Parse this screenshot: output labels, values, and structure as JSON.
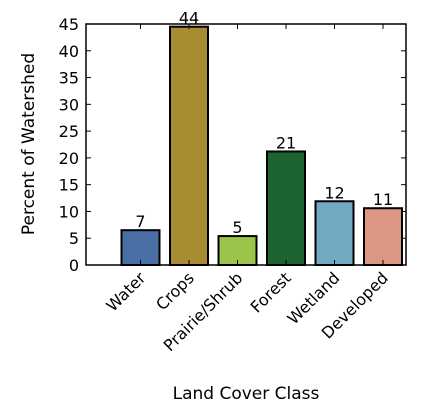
{
  "chart_data": {
    "type": "bar",
    "title": "",
    "xlabel": "Land Cover Class",
    "ylabel": "Percent of Watershed",
    "categories": [
      "Water",
      "Crops",
      "Prairie/Shrub",
      "Forest",
      "Wetland",
      "Developed"
    ],
    "values": [
      6.5,
      44.5,
      5.4,
      21.2,
      11.9,
      10.6
    ],
    "data_labels": [
      "7",
      "44",
      "5",
      "21",
      "12",
      "11"
    ],
    "colors": [
      "#4a6fa5",
      "#a88c32",
      "#9dc44a",
      "#1e6332",
      "#72a8c0",
      "#dd9684"
    ],
    "ylim": [
      0,
      45
    ],
    "yticks": [
      0,
      5,
      10,
      15,
      20,
      25,
      30,
      35,
      40,
      45
    ],
    "grid": false,
    "legend": "none"
  }
}
